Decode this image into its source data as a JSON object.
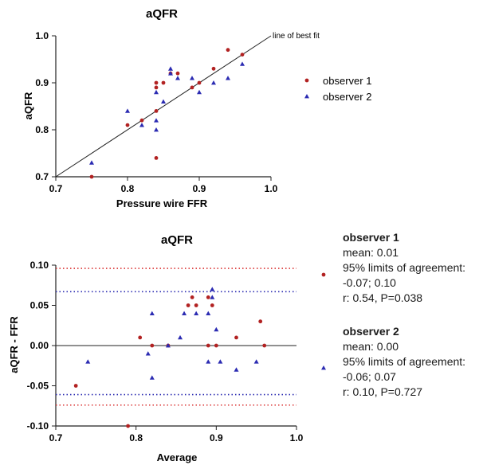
{
  "chart_data": [
    {
      "type": "scatter",
      "title": "aQFR",
      "xlabel": "Pressure wire FFR",
      "ylabel": "aQFR",
      "xlim": [
        0.7,
        1.0
      ],
      "ylim": [
        0.7,
        1.0
      ],
      "xticks": [
        "0.7",
        "0.8",
        "0.9",
        "1.0"
      ],
      "yticks": [
        "0.7",
        "0.8",
        "0.9",
        "1.0"
      ],
      "annotation": "line of best fit",
      "legend_position": "right",
      "series": [
        {
          "name": "observer 1",
          "color": "#b22222",
          "marker": "circle",
          "points": [
            [
              0.75,
              0.7
            ],
            [
              0.8,
              0.81
            ],
            [
              0.82,
              0.82
            ],
            [
              0.84,
              0.74
            ],
            [
              0.84,
              0.84
            ],
            [
              0.84,
              0.89
            ],
            [
              0.84,
              0.9
            ],
            [
              0.85,
              0.9
            ],
            [
              0.86,
              0.92
            ],
            [
              0.87,
              0.92
            ],
            [
              0.89,
              0.89
            ],
            [
              0.9,
              0.9
            ],
            [
              0.92,
              0.93
            ],
            [
              0.94,
              0.97
            ],
            [
              0.96,
              0.96
            ]
          ]
        },
        {
          "name": "observer 2",
          "color": "#2b2bb2",
          "marker": "triangle",
          "points": [
            [
              0.75,
              0.73
            ],
            [
              0.8,
              0.84
            ],
            [
              0.82,
              0.81
            ],
            [
              0.84,
              0.8
            ],
            [
              0.84,
              0.82
            ],
            [
              0.84,
              0.88
            ],
            [
              0.85,
              0.86
            ],
            [
              0.86,
              0.93
            ],
            [
              0.86,
              0.92
            ],
            [
              0.87,
              0.91
            ],
            [
              0.89,
              0.91
            ],
            [
              0.9,
              0.88
            ],
            [
              0.92,
              0.9
            ],
            [
              0.94,
              0.91
            ],
            [
              0.96,
              0.94
            ]
          ]
        }
      ],
      "fit_line": [
        [
          0.7,
          0.7
        ],
        [
          1.0,
          1.0
        ]
      ]
    },
    {
      "type": "scatter",
      "title": "aQFR",
      "xlabel": "Average",
      "ylabel": "aQFR - FFR",
      "xlim": [
        0.7,
        1.0
      ],
      "ylim": [
        -0.1,
        0.1
      ],
      "xticks": [
        "0.7",
        "0.8",
        "0.9",
        "1.0"
      ],
      "yticks": [
        "0.10",
        "0.05",
        "0.00",
        "-0.05",
        "-0.10"
      ],
      "zero_line": 0,
      "limit_lines": [
        {
          "y": 0.096,
          "color": "#d93030",
          "style": "dotted"
        },
        {
          "y": -0.074,
          "color": "#d93030",
          "style": "dotted"
        },
        {
          "y": 0.067,
          "color": "#2b2bb2",
          "style": "dotted"
        },
        {
          "y": -0.061,
          "color": "#2b2bb2",
          "style": "dotted"
        }
      ],
      "series": [
        {
          "name": "observer 1",
          "color": "#b22222",
          "marker": "circle",
          "points": [
            [
              0.725,
              -0.05
            ],
            [
              0.79,
              -0.1
            ],
            [
              0.805,
              0.01
            ],
            [
              0.82,
              0.0
            ],
            [
              0.84,
              0.0
            ],
            [
              0.865,
              0.05
            ],
            [
              0.87,
              0.06
            ],
            [
              0.875,
              0.05
            ],
            [
              0.89,
              0.06
            ],
            [
              0.89,
              0.0
            ],
            [
              0.895,
              0.05
            ],
            [
              0.9,
              0.0
            ],
            [
              0.925,
              0.01
            ],
            [
              0.955,
              0.03
            ],
            [
              0.96,
              0.0
            ]
          ]
        },
        {
          "name": "observer 2",
          "color": "#2b2bb2",
          "marker": "triangle",
          "points": [
            [
              0.74,
              -0.02
            ],
            [
              0.815,
              -0.01
            ],
            [
              0.82,
              0.04
            ],
            [
              0.82,
              -0.04
            ],
            [
              0.84,
              0.0
            ],
            [
              0.855,
              0.01
            ],
            [
              0.86,
              0.04
            ],
            [
              0.875,
              0.04
            ],
            [
              0.89,
              0.04
            ],
            [
              0.89,
              -0.02
            ],
            [
              0.895,
              0.07
            ],
            [
              0.895,
              0.06
            ],
            [
              0.9,
              0.02
            ],
            [
              0.905,
              -0.02
            ],
            [
              0.925,
              -0.03
            ],
            [
              0.95,
              -0.02
            ]
          ]
        }
      ],
      "stats": [
        {
          "header": "observer 1",
          "lines": [
            "mean: 0.01",
            "95% limits of agreement:",
            "-0.07; 0.10",
            "r: 0.54, P=0.038"
          ]
        },
        {
          "header": "observer 2",
          "lines": [
            "mean: 0.00",
            "95% limits of agreement:",
            "-0.06; 0.07",
            "r: 0.10, P=0.727"
          ]
        }
      ]
    }
  ]
}
